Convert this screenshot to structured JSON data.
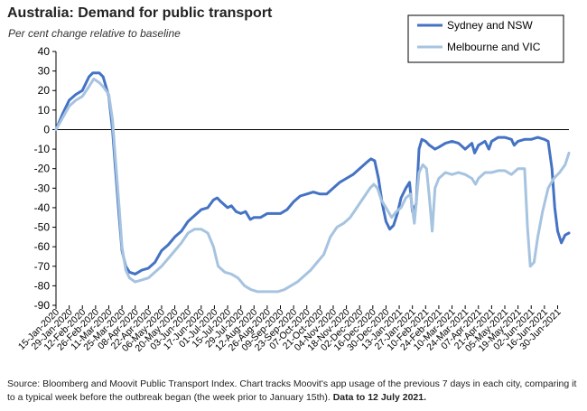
{
  "title": "Australia: Demand for public transport",
  "subtitle": "Per cent change relative to baseline",
  "footer": {
    "text": "Source: Bloomberg and Moovit Public Transport Index.  Chart tracks Moovit's app usage of the previous 7 days in each city, comparing it to a typical week before the outbreak began (the week prior to January 15th).",
    "bold": "Data to 12 July 2021."
  },
  "colors": {
    "sydney": "#4472C4",
    "melbourne": "#A6C3E0",
    "axis": "#000000",
    "grid": "#000000"
  },
  "chart_data": {
    "type": "line",
    "ylim": [
      -90,
      40
    ],
    "yticks": [
      40,
      30,
      20,
      10,
      0,
      -10,
      -20,
      -30,
      -40,
      -50,
      -60,
      -70,
      -80,
      -90
    ],
    "grid": false,
    "legend_position": "top-right",
    "x_range": [
      "2020-01-15",
      "2021-07-12"
    ],
    "xtick_labels": [
      "15-Jan-2020",
      "29-Jan-2020",
      "12-Feb-2020",
      "26-Feb-2020",
      "11-Mar-2020",
      "25-Mar-2020",
      "08-Apr-2020",
      "22-Apr-2020",
      "06-May-2020",
      "20-May-2020",
      "03-Jun-2020",
      "17-Jun-2020",
      "01-Jul-2020",
      "15-Jul-2020",
      "29-Jul-2020",
      "12-Aug-2020",
      "26-Aug-2020",
      "09-Sep-2020",
      "23-Sep-2020",
      "07-Oct-2020",
      "21-Oct-2020",
      "04-Nov-2020",
      "18-Nov-2020",
      "02-Dec-2020",
      "16-Dec-2020",
      "30-Dec-2020",
      "13-Jan-2021",
      "27-Jan-2021",
      "10-Feb-2021",
      "24-Feb-2021",
      "10-Mar-2021",
      "24-Mar-2021",
      "07-Apr-2021",
      "21-Apr-2021",
      "05-May-2021",
      "19-May-2021",
      "02-Jun-2021",
      "16-Jun-2021",
      "30-Jun-2021"
    ],
    "series": [
      {
        "name": "Sydney and NSW",
        "color": "#4472C4",
        "points": [
          [
            "2020-01-15",
            0
          ],
          [
            "2020-01-22",
            8
          ],
          [
            "2020-01-29",
            15
          ],
          [
            "2020-02-05",
            18
          ],
          [
            "2020-02-12",
            20
          ],
          [
            "2020-02-19",
            27
          ],
          [
            "2020-02-23",
            29
          ],
          [
            "2020-03-01",
            29
          ],
          [
            "2020-03-05",
            27
          ],
          [
            "2020-03-11",
            17
          ],
          [
            "2020-03-15",
            0
          ],
          [
            "2020-03-18",
            -20
          ],
          [
            "2020-03-22",
            -45
          ],
          [
            "2020-03-25",
            -62
          ],
          [
            "2020-03-29",
            -70
          ],
          [
            "2020-04-02",
            -73
          ],
          [
            "2020-04-08",
            -74
          ],
          [
            "2020-04-15",
            -72
          ],
          [
            "2020-04-22",
            -71
          ],
          [
            "2020-04-29",
            -68
          ],
          [
            "2020-05-06",
            -62
          ],
          [
            "2020-05-13",
            -59
          ],
          [
            "2020-05-20",
            -55
          ],
          [
            "2020-05-27",
            -52
          ],
          [
            "2020-06-03",
            -47
          ],
          [
            "2020-06-10",
            -44
          ],
          [
            "2020-06-17",
            -41
          ],
          [
            "2020-06-24",
            -40
          ],
          [
            "2020-06-30",
            -36
          ],
          [
            "2020-07-04",
            -35
          ],
          [
            "2020-07-08",
            -37
          ],
          [
            "2020-07-15",
            -40
          ],
          [
            "2020-07-19",
            -39
          ],
          [
            "2020-07-24",
            -42
          ],
          [
            "2020-07-29",
            -43
          ],
          [
            "2020-08-03",
            -42
          ],
          [
            "2020-08-08",
            -46
          ],
          [
            "2020-08-12",
            -45
          ],
          [
            "2020-08-19",
            -45
          ],
          [
            "2020-08-26",
            -43
          ],
          [
            "2020-09-02",
            -43
          ],
          [
            "2020-09-09",
            -43
          ],
          [
            "2020-09-16",
            -41
          ],
          [
            "2020-09-23",
            -37
          ],
          [
            "2020-09-30",
            -34
          ],
          [
            "2020-10-07",
            -33
          ],
          [
            "2020-10-14",
            -32
          ],
          [
            "2020-10-21",
            -33
          ],
          [
            "2020-10-28",
            -33
          ],
          [
            "2020-11-04",
            -30
          ],
          [
            "2020-11-11",
            -27
          ],
          [
            "2020-11-18",
            -25
          ],
          [
            "2020-11-25",
            -23
          ],
          [
            "2020-12-02",
            -20
          ],
          [
            "2020-12-09",
            -17
          ],
          [
            "2020-12-14",
            -15
          ],
          [
            "2020-12-18",
            -16
          ],
          [
            "2020-12-22",
            -25
          ],
          [
            "2020-12-26",
            -38
          ],
          [
            "2020-12-30",
            -47
          ],
          [
            "2021-01-03",
            -51
          ],
          [
            "2021-01-07",
            -49
          ],
          [
            "2021-01-11",
            -43
          ],
          [
            "2021-01-15",
            -35
          ],
          [
            "2021-01-20",
            -30
          ],
          [
            "2021-01-24",
            -27
          ],
          [
            "2021-01-27",
            -42
          ],
          [
            "2021-01-31",
            -38
          ],
          [
            "2021-02-03",
            -10
          ],
          [
            "2021-02-06",
            -5
          ],
          [
            "2021-02-10",
            -6
          ],
          [
            "2021-02-14",
            -8
          ],
          [
            "2021-02-17",
            -9
          ],
          [
            "2021-02-20",
            -10
          ],
          [
            "2021-02-24",
            -9
          ],
          [
            "2021-03-03",
            -7
          ],
          [
            "2021-03-10",
            -6
          ],
          [
            "2021-03-17",
            -7
          ],
          [
            "2021-03-24",
            -10
          ],
          [
            "2021-03-31",
            -7
          ],
          [
            "2021-04-03",
            -12
          ],
          [
            "2021-04-07",
            -8
          ],
          [
            "2021-04-14",
            -6
          ],
          [
            "2021-04-18",
            -10
          ],
          [
            "2021-04-21",
            -6
          ],
          [
            "2021-04-28",
            -4
          ],
          [
            "2021-05-05",
            -4
          ],
          [
            "2021-05-12",
            -5
          ],
          [
            "2021-05-15",
            -8
          ],
          [
            "2021-05-19",
            -6
          ],
          [
            "2021-05-26",
            -5
          ],
          [
            "2021-06-02",
            -5
          ],
          [
            "2021-06-09",
            -4
          ],
          [
            "2021-06-16",
            -5
          ],
          [
            "2021-06-20",
            -6
          ],
          [
            "2021-06-24",
            -20
          ],
          [
            "2021-06-27",
            -40
          ],
          [
            "2021-06-30",
            -52
          ],
          [
            "2021-07-04",
            -58
          ],
          [
            "2021-07-08",
            -54
          ],
          [
            "2021-07-12",
            -53
          ]
        ]
      },
      {
        "name": "Melbourne and VIC",
        "color": "#A6C3E0",
        "points": [
          [
            "2020-01-15",
            0
          ],
          [
            "2020-01-22",
            6
          ],
          [
            "2020-01-29",
            12
          ],
          [
            "2020-02-05",
            15
          ],
          [
            "2020-02-12",
            17
          ],
          [
            "2020-02-19",
            22
          ],
          [
            "2020-02-24",
            26
          ],
          [
            "2020-03-01",
            24
          ],
          [
            "2020-03-05",
            22
          ],
          [
            "2020-03-11",
            18
          ],
          [
            "2020-03-15",
            5
          ],
          [
            "2020-03-18",
            -15
          ],
          [
            "2020-03-22",
            -40
          ],
          [
            "2020-03-25",
            -60
          ],
          [
            "2020-03-29",
            -72
          ],
          [
            "2020-04-02",
            -76
          ],
          [
            "2020-04-08",
            -78
          ],
          [
            "2020-04-15",
            -77
          ],
          [
            "2020-04-22",
            -76
          ],
          [
            "2020-04-29",
            -73
          ],
          [
            "2020-05-06",
            -70
          ],
          [
            "2020-05-13",
            -66
          ],
          [
            "2020-05-20",
            -62
          ],
          [
            "2020-05-27",
            -58
          ],
          [
            "2020-06-03",
            -53
          ],
          [
            "2020-06-10",
            -51
          ],
          [
            "2020-06-17",
            -51
          ],
          [
            "2020-06-24",
            -53
          ],
          [
            "2020-06-30",
            -60
          ],
          [
            "2020-07-05",
            -70
          ],
          [
            "2020-07-12",
            -73
          ],
          [
            "2020-07-19",
            -74
          ],
          [
            "2020-07-26",
            -76
          ],
          [
            "2020-08-02",
            -80
          ],
          [
            "2020-08-09",
            -82
          ],
          [
            "2020-08-16",
            -83
          ],
          [
            "2020-08-23",
            -83
          ],
          [
            "2020-08-30",
            -83
          ],
          [
            "2020-09-06",
            -83
          ],
          [
            "2020-09-13",
            -82
          ],
          [
            "2020-09-20",
            -80
          ],
          [
            "2020-09-27",
            -78
          ],
          [
            "2020-10-04",
            -75
          ],
          [
            "2020-10-11",
            -72
          ],
          [
            "2020-10-18",
            -68
          ],
          [
            "2020-10-25",
            -64
          ],
          [
            "2020-11-01",
            -55
          ],
          [
            "2020-11-08",
            -50
          ],
          [
            "2020-11-15",
            -48
          ],
          [
            "2020-11-22",
            -45
          ],
          [
            "2020-11-29",
            -40
          ],
          [
            "2020-12-06",
            -35
          ],
          [
            "2020-12-13",
            -30
          ],
          [
            "2020-12-17",
            -28
          ],
          [
            "2020-12-21",
            -30
          ],
          [
            "2020-12-25",
            -36
          ],
          [
            "2020-12-30",
            -40
          ],
          [
            "2021-01-05",
            -45
          ],
          [
            "2021-01-10",
            -42
          ],
          [
            "2021-01-15",
            -40
          ],
          [
            "2021-01-20",
            -35
          ],
          [
            "2021-01-25",
            -33
          ],
          [
            "2021-01-29",
            -48
          ],
          [
            "2021-02-03",
            -22
          ],
          [
            "2021-02-07",
            -18
          ],
          [
            "2021-02-11",
            -20
          ],
          [
            "2021-02-14",
            -35
          ],
          [
            "2021-02-17",
            -52
          ],
          [
            "2021-02-20",
            -30
          ],
          [
            "2021-02-24",
            -25
          ],
          [
            "2021-03-03",
            -22
          ],
          [
            "2021-03-10",
            -23
          ],
          [
            "2021-03-17",
            -22
          ],
          [
            "2021-03-24",
            -23
          ],
          [
            "2021-03-31",
            -25
          ],
          [
            "2021-04-04",
            -28
          ],
          [
            "2021-04-07",
            -25
          ],
          [
            "2021-04-14",
            -22
          ],
          [
            "2021-04-21",
            -22
          ],
          [
            "2021-04-28",
            -21
          ],
          [
            "2021-05-05",
            -21
          ],
          [
            "2021-05-12",
            -23
          ],
          [
            "2021-05-19",
            -20
          ],
          [
            "2021-05-26",
            -20
          ],
          [
            "2021-05-29",
            -50
          ],
          [
            "2021-06-01",
            -70
          ],
          [
            "2021-06-05",
            -68
          ],
          [
            "2021-06-09",
            -55
          ],
          [
            "2021-06-14",
            -42
          ],
          [
            "2021-06-20",
            -30
          ],
          [
            "2021-06-26",
            -25
          ],
          [
            "2021-07-02",
            -22
          ],
          [
            "2021-07-08",
            -18
          ],
          [
            "2021-07-12",
            -12
          ]
        ]
      }
    ]
  }
}
